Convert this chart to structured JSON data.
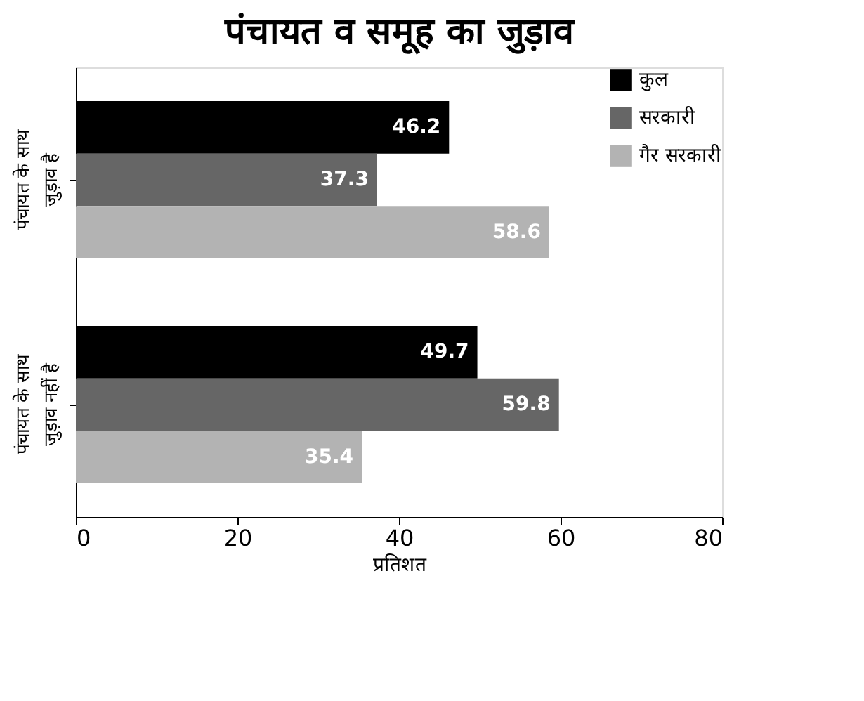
{
  "chart_data": {
    "type": "bar",
    "orientation": "horizontal",
    "title": "पंचायत व समूह का जुड़ाव",
    "xlabel": "प्रतिशत",
    "categories": [
      "पंचायत के साथ जुड़ाव है",
      "पंचायत के साथ जुड़ाव नहीं है"
    ],
    "series": [
      {
        "name": "कुल",
        "color": "#000000",
        "values": [
          46.2,
          49.7
        ]
      },
      {
        "name": "सरकारी",
        "color": "#666666",
        "values": [
          37.3,
          59.8
        ]
      },
      {
        "name": "गैर सरकारी",
        "color": "#b3b3b3",
        "values": [
          58.6,
          35.4
        ]
      }
    ],
    "xlim": [
      0,
      80
    ],
    "xticks": [
      0,
      20,
      40,
      60,
      80
    ],
    "grid": false,
    "legend": "top right",
    "data_labels": true
  }
}
